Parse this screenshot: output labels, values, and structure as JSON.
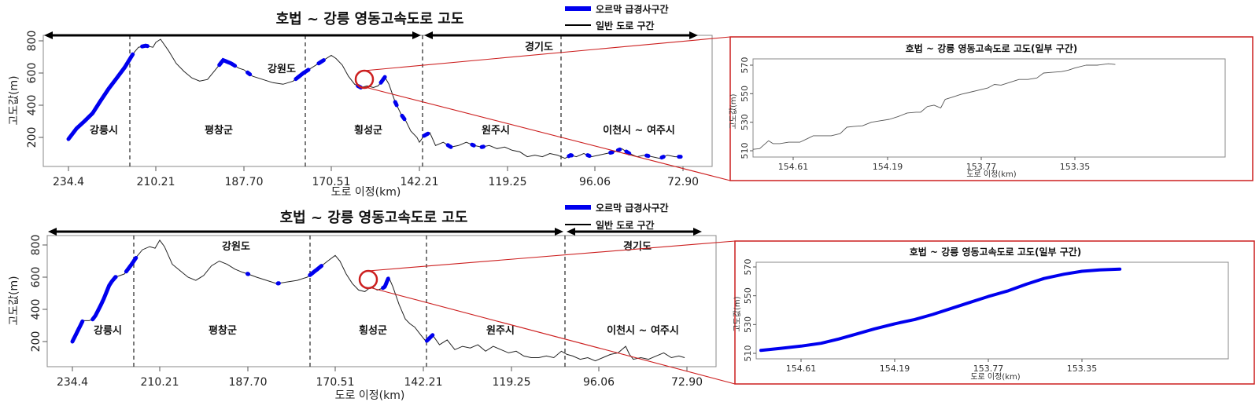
{
  "chart_data": [
    {
      "id": "top_main",
      "type": "line",
      "title": "호법 ~ 강릉 영동고속도로 고도",
      "xlabel": "도로 이정(km)",
      "ylabel": "고도값(m)",
      "x_ticks": [
        "234.4",
        "210.21",
        "187.70",
        "170.51",
        "142.21",
        "119.25",
        "96.06",
        "72.90"
      ],
      "y_ticks": [
        200,
        400,
        600,
        800
      ],
      "xlim": [
        238.5,
        67
      ],
      "ylim": [
        40,
        860
      ],
      "x_reversed": true,
      "legend": [
        {
          "label": "오르막 급경사구간",
          "color": "#0000ee",
          "style": "thick"
        },
        {
          "label": "일반 도로 구간",
          "color": "#000000",
          "style": "thin"
        }
      ],
      "provinces": [
        {
          "label": "강원도",
          "from_km": 238.5,
          "to_km": 142.21
        },
        {
          "label": "경기도",
          "from_km": 142.21,
          "to_km": 67
        }
      ],
      "region_boundaries_km": [
        216.5,
        171.9,
        140.6,
        102.5
      ],
      "regions": [
        "강릉시",
        "평창군",
        "횡성군",
        "원주시",
        "이천시 ~ 여주시"
      ],
      "zoom_circle": {
        "km": 155,
        "elev": 545
      },
      "series": [
        {
          "name": "일반 도로 구간",
          "color": "#000000",
          "x": [
            234.4,
            232,
            230,
            228,
            226,
            224,
            222,
            220,
            218,
            216.5,
            215,
            213,
            211,
            210.2,
            209,
            207,
            205,
            203,
            201,
            199,
            197,
            195,
            193,
            191,
            189,
            187.7,
            186,
            184,
            182,
            180,
            178,
            176,
            174,
            172,
            170.5,
            169,
            167,
            165,
            163,
            161,
            159,
            157,
            155.5,
            154.6,
            153.3,
            152,
            150,
            148,
            146.5,
            145,
            143,
            142.2,
            141,
            139.5,
            138,
            136,
            134,
            132,
            130,
            128,
            126,
            124,
            122,
            120,
            118,
            116,
            114,
            112,
            110,
            108,
            106,
            104,
            102.5,
            101,
            99,
            97,
            95,
            93,
            91,
            89,
            87,
            85,
            83,
            81,
            79,
            77,
            75,
            73.5
          ],
          "y": [
            190,
            260,
            300,
            340,
            410,
            480,
            540,
            600,
            660,
            720,
            760,
            770,
            760,
            790,
            810,
            740,
            660,
            610,
            570,
            550,
            560,
            620,
            680,
            660,
            630,
            620,
            580,
            560,
            540,
            530,
            550,
            600,
            640,
            680,
            710,
            690,
            650,
            580,
            530,
            510,
            520,
            510,
            520,
            540,
            575,
            530,
            420,
            340,
            300,
            240,
            200,
            170,
            210,
            230,
            150,
            170,
            140,
            150,
            170,
            150,
            140,
            150,
            130,
            140,
            120,
            110,
            80,
            90,
            80,
            100,
            90,
            70,
            90,
            80,
            100,
            80,
            90,
            100,
            110,
            130,
            100,
            80,
            90,
            80,
            70,
            90,
            80,
            80
          ]
        },
        {
          "name": "오르막 급경사구간",
          "color": "#0000ee",
          "segments_km": [
            [
              234.4,
              216.6
            ],
            [
              214,
              212.5
            ],
            [
              194,
              190
            ],
            [
              187,
              186.5
            ],
            [
              177.5,
              175
            ],
            [
              173,
              172
            ],
            [
              162,
              161
            ],
            [
              154.6,
              153.3
            ],
            [
              150,
              149.5
            ],
            [
              147.8,
              147
            ],
            [
              141,
              140
            ],
            [
              134.8,
              134
            ],
            [
              128.5,
              128
            ],
            [
              126,
              125.5
            ],
            [
              103,
              102.2
            ],
            [
              98,
              97.5
            ],
            [
              92,
              91.5
            ],
            [
              90,
              89.5
            ],
            [
              87.8,
              87
            ],
            [
              82.5,
              82
            ],
            [
              78.5,
              78
            ],
            [
              74,
              73.5
            ]
          ]
        }
      ]
    },
    {
      "id": "top_inset",
      "type": "line",
      "title": "호법 ~ 강릉 영동고속도로 고도(일부 구간)",
      "xlabel": "도로 이정(km)",
      "ylabel": "고도값(m)",
      "x_ticks": [
        "154.61",
        "154.19",
        "153.77",
        "153.35"
      ],
      "y_ticks": [
        510,
        530,
        550,
        570
      ],
      "xlim": [
        154.82,
        153.12
      ],
      "ylim": [
        508,
        574
      ],
      "series": [
        {
          "name": "일반 도로 구간",
          "color": "#555555",
          "x": [
            154.79,
            154.76,
            154.72,
            154.7,
            154.67,
            154.63,
            154.58,
            154.54,
            154.52,
            154.49,
            154.44,
            154.4,
            154.37,
            154.34,
            154.3,
            154.26,
            154.22,
            154.18,
            154.14,
            154.1,
            154.06,
            154.04,
            154.01,
            153.98,
            153.95,
            153.93,
            153.9,
            153.86,
            153.82,
            153.78,
            153.74,
            153.71,
            153.68,
            153.64,
            153.6,
            153.56,
            153.52,
            153.49,
            153.45,
            153.41,
            153.38,
            153.35,
            153.3,
            153.25,
            153.2,
            153.17
          ],
          "y": [
            511,
            511.5,
            517,
            515,
            515,
            516,
            516,
            519,
            520.5,
            520.5,
            520.5,
            522,
            526.5,
            527,
            527.5,
            530,
            531,
            532,
            534,
            536.5,
            537,
            537,
            541,
            542,
            540,
            546,
            547.5,
            549.5,
            551,
            552.5,
            554,
            556.5,
            556,
            558,
            560,
            560,
            561,
            564.5,
            565,
            565.5,
            566.5,
            568,
            570,
            570,
            571,
            570.5
          ]
        }
      ]
    },
    {
      "id": "bottom_main",
      "type": "line",
      "title": "호법 ~ 강릉 영동고속도로 고도",
      "xlabel": "도로 이정(km)",
      "ylabel": "고도값(m)",
      "x_ticks": [
        "234.4",
        "210.21",
        "187.70",
        "170.51",
        "142.21",
        "119.25",
        "96.06",
        "72.90"
      ],
      "y_ticks": [
        200,
        400,
        600,
        800
      ],
      "xlim": [
        238.5,
        67
      ],
      "ylim": [
        40,
        860
      ],
      "x_reversed": true,
      "legend": [
        {
          "label": "오르막 급경사구간",
          "color": "#0000ee",
          "style": "thick"
        },
        {
          "label": "일반 도로 구간",
          "color": "#000000",
          "style": "thin"
        }
      ],
      "provinces": [
        {
          "label": "강원도",
          "from_km": 238.5,
          "to_km": 104.5
        },
        {
          "label": "경기도",
          "from_km": 104.5,
          "to_km": 67
        }
      ],
      "region_boundaries_km": [
        216.5,
        172.5,
        141.6,
        104.5
      ],
      "regions": [
        "강릉시",
        "평창군",
        "횡성군",
        "원주시",
        "이천시 ~ 여주시"
      ],
      "zoom_circle": {
        "km": 155,
        "elev": 570
      },
      "series": [
        {
          "name": "일반 도로 구간",
          "color": "#000000",
          "x": [
            234.4,
            231.5,
            229.8,
            228.5,
            226,
            224,
            222.5,
            220,
            218,
            216.5,
            215,
            213,
            211.5,
            210.2,
            209,
            207,
            205,
            203,
            201,
            199,
            197,
            195,
            193,
            191,
            189,
            187.7,
            186,
            184,
            182,
            180,
            178,
            176,
            174,
            172,
            170.5,
            169,
            167,
            165,
            163,
            161,
            159,
            157,
            155.5,
            154.6,
            153.3,
            152,
            150,
            148,
            146.5,
            145,
            143,
            141.5,
            139.8,
            138,
            136,
            134,
            132,
            130,
            128,
            126,
            124,
            122,
            120,
            118,
            116,
            114,
            112,
            110,
            108,
            106,
            104.5,
            103,
            101,
            99,
            97,
            95,
            93,
            91,
            89,
            88,
            87,
            85,
            83,
            81,
            79,
            77,
            75,
            73.5
          ],
          "y": [
            200,
            330,
            330,
            340,
            450,
            560,
            600,
            620,
            680,
            730,
            770,
            790,
            780,
            830,
            790,
            680,
            640,
            600,
            580,
            610,
            670,
            700,
            680,
            650,
            630,
            620,
            600,
            580,
            560,
            570,
            580,
            600,
            650,
            700,
            735,
            700,
            620,
            560,
            520,
            510,
            540,
            520,
            530,
            540,
            600,
            540,
            430,
            340,
            310,
            290,
            240,
            200,
            240,
            180,
            210,
            150,
            170,
            160,
            180,
            140,
            170,
            150,
            130,
            140,
            110,
            100,
            100,
            110,
            100,
            140,
            120,
            110,
            90,
            100,
            80,
            100,
            120,
            130,
            170,
            120,
            90,
            100,
            90,
            110,
            130,
            100,
            110,
            100
          ]
        },
        {
          "name": "오르막 급경사구간",
          "color": "#0000ee",
          "segments_km": [
            [
              234.4,
              231.6
            ],
            [
              228.8,
              222.7
            ],
            [
              222.6,
              222.4
            ],
            [
              219.5,
              216.8
            ],
            [
              187.8,
              187.6
            ],
            [
              181.8,
              181.6
            ],
            [
              175.5,
              173.2
            ],
            [
              155.2,
              153.5
            ],
            [
              141.3,
              139.8
            ]
          ]
        }
      ]
    },
    {
      "id": "bottom_inset",
      "type": "line",
      "title": "호법 ~ 강릉 영동고속도로 고도(일부 구간)",
      "xlabel": "도로 이정(km)",
      "ylabel": "고도값(m)",
      "x_ticks": [
        "154.61",
        "154.19",
        "153.77",
        "153.35"
      ],
      "y_ticks": [
        510,
        530,
        550,
        570
      ],
      "xlim": [
        154.82,
        153.12
      ],
      "ylim": [
        508,
        574
      ],
      "series": [
        {
          "name": "오르막 급경사구간",
          "color": "#0000ee",
          "x": [
            154.79,
            154.7,
            154.61,
            154.52,
            154.44,
            154.36,
            154.28,
            154.19,
            154.1,
            154.02,
            153.94,
            153.86,
            153.77,
            153.68,
            153.6,
            153.52,
            153.43,
            153.35,
            153.27,
            153.18
          ],
          "y": [
            512,
            513.5,
            515,
            517,
            520,
            523.5,
            527,
            530.5,
            533.5,
            537,
            541,
            545,
            549.5,
            553.5,
            558,
            562,
            565,
            567,
            568,
            568.5
          ]
        }
      ]
    }
  ],
  "labels": {
    "main_title": "호법 ~ 강릉 영동고속도로 고도",
    "inset_title": "호법 ~ 강릉 영동고속도로 고도(일부 구간)",
    "xlabel": "도로 이정(km)",
    "ylabel": "고도값(m)",
    "legend_steep": "오르막 급경사구간",
    "legend_normal": "일반 도로 구간",
    "province_gangwon": "강원도",
    "province_gyeonggi": "경기도",
    "region_gangneung": "강릉시",
    "region_pyeongchang": "평창군",
    "region_hoengseong": "횡성군",
    "region_wonju": "원주시",
    "region_icheon_yeoju": "이천시 ~ 여주시"
  },
  "colors": {
    "steep": "#0000ee",
    "normal": "#000000",
    "callout": "#cc1f1f",
    "frame": "#888888"
  }
}
